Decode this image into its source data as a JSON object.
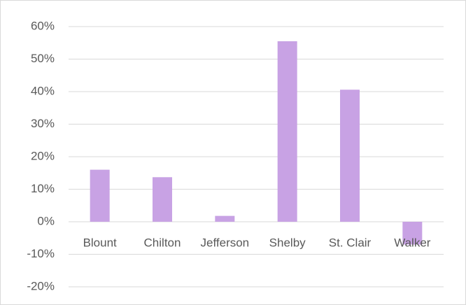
{
  "chart_data": {
    "type": "bar",
    "categories": [
      "Blount",
      "Chilton",
      "Jefferson",
      "Shelby",
      "St. Clair",
      "Walker"
    ],
    "values": [
      16,
      13.7,
      1.8,
      55.5,
      40.6,
      -7
    ],
    "color": "#c8a2e4",
    "ylim": [
      -20,
      60
    ],
    "yticks": [
      {
        "value": -20,
        "label": "-20%"
      },
      {
        "value": -10,
        "label": "-10%"
      },
      {
        "value": 0,
        "label": "0%"
      },
      {
        "value": 10,
        "label": "10%"
      },
      {
        "value": 20,
        "label": "20%"
      },
      {
        "value": 30,
        "label": "30%"
      },
      {
        "value": 40,
        "label": "40%"
      },
      {
        "value": 50,
        "label": "50%"
      },
      {
        "value": 60,
        "label": "60%"
      }
    ],
    "grid": true
  }
}
